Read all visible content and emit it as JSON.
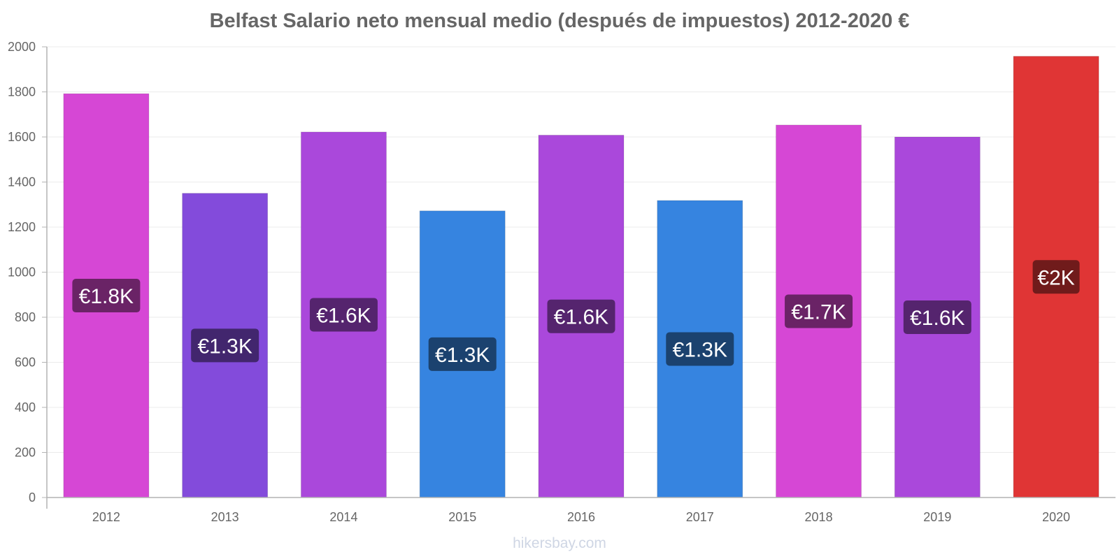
{
  "chart_data": {
    "type": "bar",
    "title": "Belfast Salario neto mensual medio (después de impuestos) 2012-2020 €",
    "xlabel": "",
    "ylabel": "",
    "categories": [
      "2012",
      "2013",
      "2014",
      "2015",
      "2016",
      "2017",
      "2018",
      "2019",
      "2020"
    ],
    "values": [
      1792,
      1350,
      1622,
      1272,
      1608,
      1318,
      1653,
      1600,
      1958
    ],
    "value_labels": [
      "€1.8K",
      "€1.3K",
      "€1.6K",
      "€1.3K",
      "€1.6K",
      "€1.3K",
      "€1.7K",
      "€1.6K",
      "€2K"
    ],
    "bar_colors": [
      "#d647d5",
      "#834bdb",
      "#aa48db",
      "#3684e0",
      "#aa48db",
      "#3684e0",
      "#d647d5",
      "#aa48db",
      "#e03535"
    ],
    "label_bg_colors": [
      "#6a2366",
      "#42266e",
      "#55246e",
      "#1b426f",
      "#55246e",
      "#1b426f",
      "#6a2366",
      "#55246e",
      "#701b1b"
    ],
    "ylim": [
      0,
      2000
    ],
    "yticks": [
      0,
      200,
      400,
      600,
      800,
      1000,
      1200,
      1400,
      1600,
      1800,
      2000
    ],
    "grid": true,
    "legend": "none"
  },
  "watermark": "hikersbay.com"
}
